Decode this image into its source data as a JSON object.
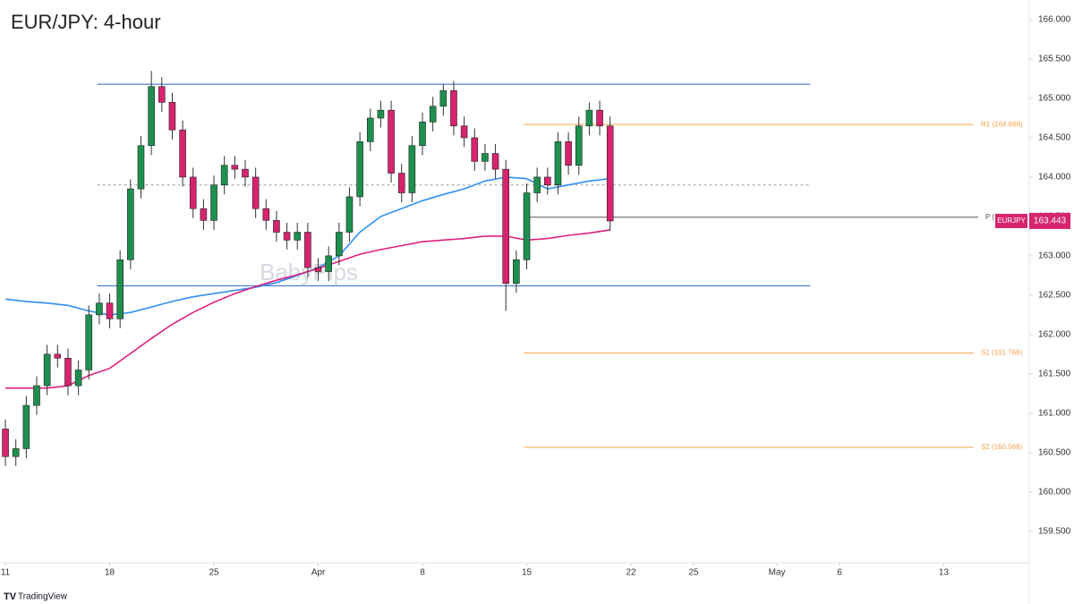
{
  "chart_data": {
    "type": "candlestick",
    "title": "EUR/JPY: 4-hour",
    "watermark": "BabyPips",
    "footer": "TradingView",
    "symbol": "EURJPY",
    "last_price": 163.443,
    "xlim": [
      -0.26,
      49.1
    ],
    "xticks": [
      {
        "value": 0,
        "label": "11"
      },
      {
        "value": 5,
        "label": "18"
      },
      {
        "value": 10,
        "label": "25"
      },
      {
        "value": 15,
        "label": "Apr"
      },
      {
        "value": 20,
        "label": "8"
      },
      {
        "value": 25,
        "label": "15"
      },
      {
        "value": 30,
        "label": "22"
      },
      {
        "value": 33,
        "label": "25"
      },
      {
        "value": 37,
        "label": "May"
      },
      {
        "value": 40,
        "label": "6"
      },
      {
        "value": 45,
        "label": "13"
      }
    ],
    "ylim": [
      159.1,
      166.25
    ],
    "yticks": [
      {
        "value": 159.5,
        "label": "159.500"
      },
      {
        "value": 160,
        "label": "160.000"
      },
      {
        "value": 160.5,
        "label": "160.500"
      },
      {
        "value": 161,
        "label": "161.000"
      },
      {
        "value": 161.5,
        "label": "161.500"
      },
      {
        "value": 162,
        "label": "162.000"
      },
      {
        "value": 162.5,
        "label": "162.500"
      },
      {
        "value": 163,
        "label": "163.000"
      },
      {
        "value": 163.5,
        "label": "163.500"
      },
      {
        "value": 164,
        "label": "164.000"
      },
      {
        "value": 164.5,
        "label": "164.500"
      },
      {
        "value": 165,
        "label": "165.000"
      },
      {
        "value": 165.5,
        "label": "165.500"
      },
      {
        "value": 166,
        "label": "166.000"
      }
    ],
    "up_color": "#1e8f4e",
    "down_color": "#d6246e",
    "candles": {
      "x": [
        0,
        0.5,
        1,
        1.5,
        2,
        2.5,
        3,
        3.5,
        4,
        4.5,
        5,
        5.5,
        6,
        6.5,
        7,
        7.5,
        8,
        8.5,
        9,
        9.5,
        10,
        10.5,
        11,
        11.5,
        12,
        12.5,
        13,
        13.5,
        14,
        14.5,
        15,
        15.5,
        16,
        16.5,
        17,
        17.5,
        18,
        18.5,
        19,
        19.5,
        20,
        20.5,
        21,
        21.5,
        22,
        22.5,
        23,
        23.5,
        24,
        24.5,
        25,
        25.5,
        26,
        26.5,
        27,
        27.5,
        28,
        28.5,
        29
      ],
      "open": [
        160.8,
        160.45,
        160.55,
        161.1,
        161.35,
        161.75,
        161.7,
        161.35,
        161.55,
        162.25,
        162.4,
        162.2,
        162.95,
        163.85,
        164.4,
        165.15,
        164.95,
        164.6,
        164.0,
        163.6,
        163.45,
        163.9,
        164.15,
        164.1,
        164.0,
        163.6,
        163.45,
        163.3,
        163.2,
        163.3,
        162.85,
        162.8,
        163.0,
        163.3,
        163.75,
        164.45,
        164.75,
        164.85,
        164.05,
        163.8,
        164.4,
        164.7,
        164.9,
        165.1,
        164.65,
        164.5,
        164.2,
        164.3,
        164.1,
        162.65,
        162.95,
        163.8,
        164.0,
        163.9,
        164.45,
        164.15,
        164.65,
        164.85,
        164.65
      ],
      "high": [
        160.92,
        160.67,
        161.22,
        161.47,
        161.87,
        161.87,
        161.82,
        161.67,
        162.37,
        162.52,
        162.52,
        163.07,
        163.97,
        164.52,
        165.35,
        165.27,
        165.07,
        164.72,
        164.12,
        163.72,
        164.02,
        164.27,
        164.27,
        164.22,
        164.12,
        163.72,
        163.57,
        163.42,
        163.42,
        163.42,
        162.97,
        163.12,
        163.42,
        163.87,
        164.57,
        164.87,
        164.97,
        164.97,
        164.17,
        164.52,
        164.82,
        165.02,
        165.18,
        165.22,
        164.77,
        164.62,
        164.42,
        164.42,
        164.22,
        163.07,
        163.92,
        164.12,
        164.12,
        164.57,
        164.57,
        164.77,
        164.95,
        164.97,
        164.77
      ],
      "low": [
        160.33,
        160.33,
        160.43,
        160.98,
        161.23,
        161.58,
        161.23,
        161.23,
        161.43,
        162.13,
        162.08,
        162.08,
        162.83,
        163.73,
        164.28,
        164.83,
        164.48,
        163.88,
        163.48,
        163.33,
        163.33,
        163.78,
        163.98,
        163.88,
        163.48,
        163.33,
        163.18,
        163.08,
        163.08,
        162.73,
        162.68,
        162.68,
        162.88,
        163.18,
        163.63,
        164.33,
        164.63,
        163.93,
        163.68,
        163.68,
        164.28,
        164.58,
        164.78,
        164.53,
        164.38,
        164.08,
        164.08,
        163.98,
        162.3,
        162.53,
        162.83,
        163.68,
        163.78,
        163.78,
        164.03,
        164.03,
        164.53,
        164.53,
        163.32
      ],
      "close": [
        160.45,
        160.55,
        161.1,
        161.35,
        161.75,
        161.7,
        161.35,
        161.55,
        162.25,
        162.4,
        162.2,
        162.95,
        163.85,
        164.4,
        165.15,
        164.95,
        164.6,
        164.0,
        163.6,
        163.45,
        163.9,
        164.15,
        164.1,
        164.0,
        163.6,
        163.45,
        163.3,
        163.2,
        163.3,
        162.85,
        162.8,
        163.0,
        163.3,
        163.75,
        164.45,
        164.75,
        164.85,
        164.05,
        163.8,
        164.4,
        164.7,
        164.9,
        165.1,
        164.65,
        164.5,
        164.2,
        164.3,
        164.1,
        162.65,
        162.95,
        163.8,
        164.0,
        163.9,
        164.45,
        164.15,
        164.65,
        164.85,
        164.65,
        163.443
      ]
    },
    "series": [
      {
        "color": "#2f8ff0",
        "x": [
          0,
          1,
          2,
          3,
          4,
          5,
          6,
          7,
          8,
          9,
          10,
          11,
          12,
          13,
          14,
          15,
          16,
          17,
          18,
          19,
          20,
          21,
          22,
          23,
          24,
          25,
          26,
          27,
          28,
          29
        ],
        "values": [
          162.45,
          162.42,
          162.4,
          162.37,
          162.3,
          162.25,
          162.28,
          162.35,
          162.42,
          162.48,
          162.52,
          162.56,
          162.6,
          162.66,
          162.75,
          162.85,
          163.0,
          163.3,
          163.5,
          163.6,
          163.7,
          163.78,
          163.85,
          163.95,
          164.0,
          163.98,
          163.85,
          163.9,
          163.95,
          163.98
        ]
      },
      {
        "color": "#e0207e",
        "x": [
          0,
          1,
          2,
          3,
          4,
          5,
          6,
          7,
          8,
          9,
          10,
          11,
          12,
          13,
          14,
          15,
          16,
          17,
          18,
          19,
          20,
          21,
          22,
          23,
          24,
          25,
          26,
          27,
          28,
          29
        ],
        "values": [
          161.32,
          161.32,
          161.32,
          161.35,
          161.48,
          161.57,
          161.76,
          161.95,
          162.13,
          162.28,
          162.41,
          162.52,
          162.61,
          162.69,
          162.76,
          162.84,
          162.93,
          163.02,
          163.08,
          163.13,
          163.18,
          163.2,
          163.22,
          163.25,
          163.25,
          163.2,
          163.22,
          163.26,
          163.29,
          163.33
        ]
      }
    ],
    "levels": [
      {
        "value": 165.18,
        "from": 4.4,
        "to": 38.6,
        "color": "#2a62c9"
      },
      {
        "value": 162.62,
        "from": 4.4,
        "to": 38.6,
        "color": "#2a62c9"
      },
      {
        "value": 163.9,
        "from": 4.4,
        "to": 38.6,
        "color": "#9a9a9a",
        "dashed": true
      },
      {
        "value": 163.49,
        "from": 24.85,
        "to": 46.65,
        "color": "#555555",
        "label": "P ("
      },
      {
        "value": 164.668,
        "from": 24.85,
        "to": 46.44,
        "color": "#f7a64a",
        "label": "R1 (164.668)"
      },
      {
        "value": 161.766,
        "from": 24.85,
        "to": 46.44,
        "color": "#f7a64a",
        "label": "S1 (161.766)"
      },
      {
        "value": 160.568,
        "from": 24.85,
        "to": 46.44,
        "color": "#f7a64a",
        "label": "S2 (160.568)"
      }
    ]
  }
}
